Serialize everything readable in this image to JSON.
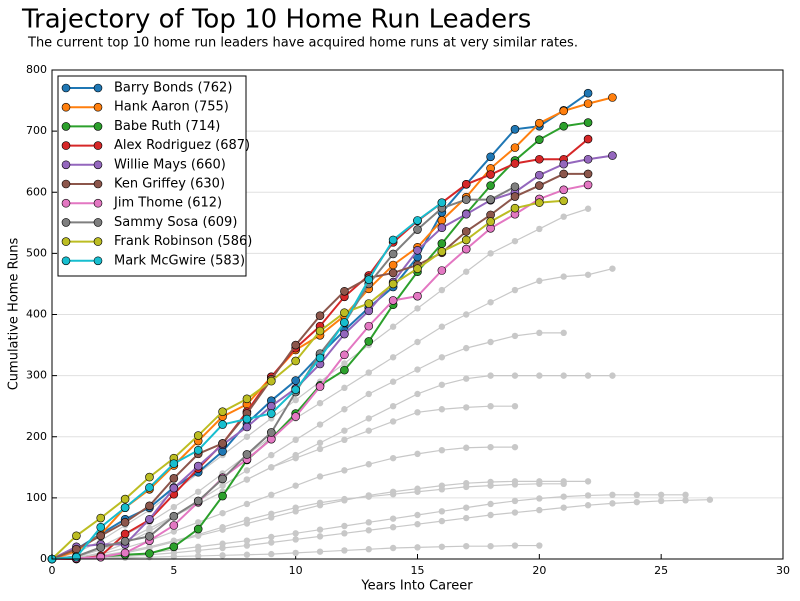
{
  "chart_data": {
    "type": "line",
    "title": "Trajectory of Top 10 Home Run Leaders",
    "subtitle": "The current top 10 home run leaders have acquired home runs at very similar rates.",
    "xlabel": "Years Into Career",
    "ylabel": "Cumulative Home Runs",
    "x": [
      0,
      1,
      2,
      3,
      4,
      5,
      6,
      7,
      8,
      9,
      10,
      11,
      12,
      13,
      14,
      15,
      16,
      17,
      18,
      19,
      20,
      21,
      22,
      23,
      24,
      25,
      26,
      27
    ],
    "xlim": [
      0,
      30
    ],
    "xticks": [
      0,
      5,
      10,
      15,
      20,
      25,
      30
    ],
    "ylim": [
      0,
      800
    ],
    "yticks": [
      0,
      100,
      200,
      300,
      400,
      500,
      600,
      700,
      800
    ],
    "grid": true,
    "legend": "upper left",
    "series": [
      {
        "color": "#c8c8c8",
        "values": [
          0,
          10,
          30,
          55,
          80,
          110,
          140,
          170,
          200,
          230,
          260,
          290,
          320,
          350,
          380,
          410,
          440,
          470,
          500,
          520,
          540,
          560,
          573,
          null,
          null,
          null,
          null,
          null
        ]
      },
      {
        "color": "#c8c8c8",
        "values": [
          0,
          5,
          20,
          40,
          60,
          85,
          110,
          140,
          170,
          200,
          230,
          255,
          280,
          305,
          330,
          355,
          380,
          400,
          420,
          440,
          455,
          462,
          465,
          475,
          null,
          null,
          null,
          null
        ]
      },
      {
        "color": "#c8c8c8",
        "values": [
          0,
          2,
          10,
          25,
          45,
          70,
          95,
          120,
          145,
          170,
          195,
          220,
          245,
          270,
          290,
          310,
          330,
          345,
          355,
          365,
          370,
          370,
          null,
          null,
          null,
          null,
          null,
          null
        ]
      },
      {
        "color": "#c8c8c8",
        "values": [
          0,
          3,
          15,
          30,
          50,
          70,
          90,
          110,
          130,
          150,
          170,
          190,
          210,
          230,
          250,
          270,
          285,
          295,
          300,
          300,
          300,
          300,
          300,
          300,
          null,
          null,
          null,
          null
        ]
      },
      {
        "color": "#c8c8c8",
        "values": [
          0,
          5,
          15,
          30,
          50,
          70,
          90,
          110,
          130,
          150,
          165,
          180,
          195,
          210,
          225,
          240,
          245,
          248,
          250,
          250,
          null,
          null,
          null,
          null,
          null,
          null,
          null,
          null
        ]
      },
      {
        "color": "#c8c8c8",
        "values": [
          0,
          2,
          8,
          18,
          30,
          45,
          60,
          75,
          90,
          105,
          120,
          135,
          145,
          155,
          165,
          172,
          178,
          182,
          183,
          183,
          null,
          null,
          null,
          null,
          null,
          null,
          null,
          null
        ]
      },
      {
        "color": "#c8c8c8",
        "values": [
          0,
          1,
          5,
          10,
          18,
          28,
          38,
          48,
          58,
          68,
          78,
          88,
          96,
          104,
          110,
          115,
          120,
          124,
          126,
          127,
          127,
          127,
          127,
          null,
          null,
          null,
          null,
          null
        ]
      },
      {
        "color": "#c8c8c8",
        "values": [
          0,
          1,
          3,
          6,
          10,
          15,
          20,
          25,
          30,
          36,
          42,
          48,
          54,
          60,
          66,
          72,
          78,
          84,
          90,
          95,
          99,
          102,
          104,
          105,
          105,
          105,
          105,
          null
        ]
      },
      {
        "color": "#c8c8c8",
        "values": [
          0,
          1,
          2,
          4,
          7,
          10,
          14,
          18,
          22,
          27,
          32,
          37,
          42,
          47,
          52,
          57,
          62,
          67,
          72,
          76,
          80,
          84,
          88,
          91,
          93,
          95,
          96,
          97
        ]
      },
      {
        "color": "#c8c8c8",
        "values": [
          0,
          0,
          1,
          2,
          3,
          4,
          5,
          6,
          7,
          8,
          10,
          12,
          14,
          16,
          18,
          19,
          20,
          21,
          21,
          22,
          22,
          null,
          null,
          null,
          null,
          null,
          null,
          null
        ]
      },
      {
        "color": "#c8c8c8",
        "values": [
          0,
          2,
          6,
          12,
          20,
          30,
          40,
          52,
          64,
          74,
          84,
          92,
          98,
          102,
          106,
          110,
          114,
          118,
          120,
          122,
          123,
          123,
          null,
          null,
          null,
          null,
          null,
          null
        ]
      },
      {
        "name": "Barry Bonds (762)",
        "color": "#1f77b4",
        "values": [
          0,
          16,
          41,
          65,
          84,
          117,
          142,
          176,
          222,
          259,
          292,
          334,
          374,
          411,
          445,
          494,
          567,
          613,
          658,
          703,
          708,
          734,
          762,
          null,
          null,
          null,
          null,
          null
        ]
      },
      {
        "name": "Hank Aaron (755)",
        "color": "#ff7f0e",
        "values": [
          0,
          13,
          40,
          84,
          114,
          153,
          193,
          233,
          253,
          298,
          342,
          366,
          398,
          442,
          481,
          510,
          554,
          592,
          639,
          673,
          713,
          733,
          745,
          755,
          null,
          null,
          null,
          null
        ]
      },
      {
        "name": "Babe Ruth (714)",
        "color": "#2ca02c",
        "values": [
          0,
          0,
          4,
          7,
          9,
          20,
          49,
          103,
          162,
          197,
          238,
          284,
          309,
          356,
          416,
          470,
          516,
          565,
          611,
          652,
          686,
          708,
          714,
          null,
          null,
          null,
          null,
          null
        ]
      },
      {
        "name": "Alex Rodriguez (687)",
        "color": "#d62728",
        "values": [
          0,
          0,
          5,
          41,
          64,
          106,
          148,
          189,
          241,
          298,
          345,
          381,
          429,
          464,
          518,
          553,
          583,
          613,
          629,
          647,
          654,
          654,
          687,
          null,
          null,
          null,
          null,
          null
        ]
      },
      {
        "name": "Willie Mays (660)",
        "color": "#9467bd",
        "values": [
          0,
          20,
          24,
          24,
          65,
          116,
          152,
          187,
          216,
          250,
          279,
          319,
          368,
          406,
          453,
          505,
          542,
          564,
          587,
          600,
          628,
          646,
          654,
          660,
          null,
          null,
          null,
          null
        ]
      },
      {
        "name": "Ken Griffey (630)",
        "color": "#8c564b",
        "values": [
          0,
          16,
          38,
          60,
          87,
          132,
          172,
          189,
          238,
          294,
          350,
          398,
          438,
          460,
          468,
          481,
          501,
          536,
          563,
          593,
          611,
          630,
          630,
          null,
          null,
          null,
          null,
          null
        ]
      },
      {
        "name": "Jim Thome (612)",
        "color": "#e377c2",
        "values": [
          0,
          1,
          3,
          10,
          30,
          55,
          93,
          133,
          163,
          196,
          233,
          282,
          334,
          381,
          423,
          430,
          472,
          507,
          541,
          564,
          589,
          604,
          612,
          null,
          null,
          null,
          null,
          null
        ]
      },
      {
        "name": "Sammy Sosa (609)",
        "color": "#7f7f7f",
        "values": [
          0,
          4,
          19,
          29,
          37,
          70,
          95,
          131,
          171,
          207,
          273,
          336,
          386,
          450,
          499,
          539,
          574,
          588,
          588,
          609,
          null,
          null,
          null,
          null,
          null,
          null,
          null,
          null
        ]
      },
      {
        "name": "Frank Robinson (586)",
        "color": "#bcbd22",
        "values": [
          0,
          38,
          67,
          98,
          134,
          165,
          202,
          241,
          262,
          291,
          324,
          373,
          403,
          418,
          450,
          475,
          503,
          522,
          552,
          574,
          583,
          586,
          null,
          null,
          null,
          null,
          null,
          null
        ]
      },
      {
        "name": "Mark McGwire (583)",
        "color": "#17becf",
        "values": [
          0,
          3,
          52,
          84,
          117,
          156,
          178,
          220,
          229,
          238,
          277,
          329,
          387,
          457,
          522,
          554,
          583,
          null,
          null,
          null,
          null,
          null,
          null,
          null,
          null,
          null,
          null,
          null
        ]
      }
    ]
  }
}
